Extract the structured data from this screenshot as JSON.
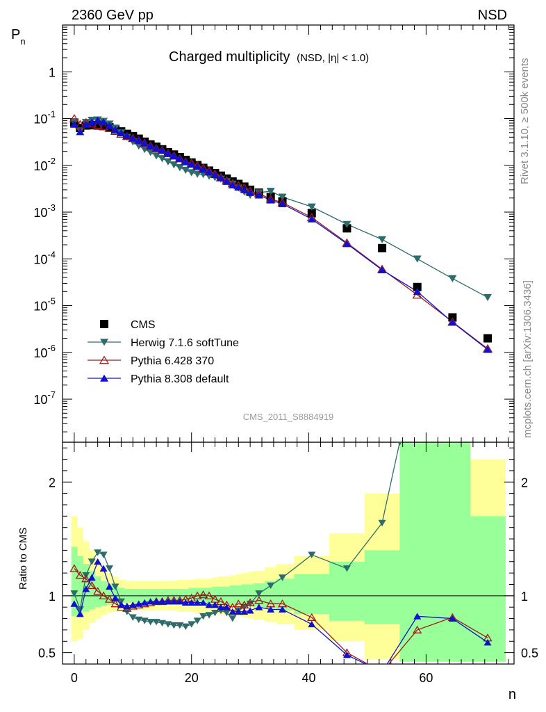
{
  "header": {
    "energy_label": "2360 GeV pp",
    "process_label": "NSD"
  },
  "side_labels": {
    "rivet": "Rivet 3.1.10, ≥ 500k events",
    "source": "mcplots.cern.ch [arXiv:1306.3436]"
  },
  "plot_id": "CMS_2011_S8884919",
  "colors": {
    "cms": "#000000",
    "herwig": "#2e6b6b",
    "pythia6": "#9b1c1c",
    "pythia8": "#1010d0",
    "band_inner": "#99ff99",
    "band_outer": "#ffff99"
  },
  "chart_data": [
    {
      "type": "scatter",
      "panel": "main",
      "title": "Charged multiplicity",
      "title_suffix": "(NSD, |η| < 1.0)",
      "ylabel": "P_n",
      "yscale": "log",
      "ylim": [
        1.2e-08,
        10
      ],
      "xlim": [
        -2,
        75
      ],
      "y_tick_labels": [
        "1",
        "10^-1",
        "10^-2",
        "10^-3",
        "10^-4",
        "10^-5",
        "10^-6",
        "10^-7"
      ],
      "legend_position": "bottom-left",
      "series": [
        {
          "name": "CMS",
          "marker": "square",
          "x": [
            0,
            1,
            2,
            3,
            4,
            5,
            6,
            7,
            8,
            9,
            10,
            11,
            12,
            13,
            14,
            15,
            16,
            17,
            18,
            19,
            20,
            21,
            22,
            23,
            24,
            25,
            26,
            27,
            28,
            29,
            30,
            31.5,
            33.5,
            35.5,
            40.5,
            46.5,
            52.5,
            58.5,
            64.5,
            70.5
          ],
          "y": [
            0.082,
            0.063,
            0.071,
            0.072,
            0.071,
            0.069,
            0.065,
            0.059,
            0.053,
            0.047,
            0.042,
            0.037,
            0.032,
            0.028,
            0.025,
            0.022,
            0.019,
            0.017,
            0.015,
            0.013,
            0.0115,
            0.0101,
            0.0088,
            0.0077,
            0.0068,
            0.006,
            0.0052,
            0.0045,
            0.004,
            0.0035,
            0.003,
            0.0026,
            0.0021,
            0.0017,
            0.00095,
            0.00045,
            0.00017,
            2.5e-05,
            5.6e-06,
            2e-06
          ]
        },
        {
          "name": "Herwig 7.1.6 softTune",
          "marker": "triangle-down",
          "x": [
            0,
            1,
            2,
            3,
            4,
            5,
            6,
            7,
            8,
            9,
            10,
            11,
            12,
            13,
            14,
            15,
            16,
            17,
            18,
            19,
            20,
            21,
            22,
            23,
            24,
            25,
            26,
            27,
            28,
            29,
            30,
            31.5,
            33.5,
            35.5,
            40.5,
            46.5,
            52.5,
            58.5,
            64.5,
            70.5
          ],
          "y": [
            0.084,
            0.055,
            0.083,
            0.093,
            0.094,
            0.088,
            0.077,
            0.063,
            0.05,
            0.04,
            0.032,
            0.026,
            0.022,
            0.019,
            0.016,
            0.014,
            0.012,
            0.0103,
            0.009,
            0.0079,
            0.007,
            0.0065,
            0.0064,
            0.0059,
            0.0055,
            0.0051,
            0.0045,
            0.004,
            0.0033,
            0.0027,
            0.0023,
            0.0026,
            0.0028,
            0.0021,
            0.0013,
            0.00055,
            0.00026,
            0.0001,
            3.8e-05,
            1.5e-05
          ]
        },
        {
          "name": "Pythia 6.428 370",
          "marker": "triangle-up-open",
          "x": [
            0,
            1,
            2,
            3,
            4,
            5,
            6,
            7,
            8,
            9,
            10,
            11,
            12,
            13,
            14,
            15,
            16,
            17,
            18,
            19,
            20,
            21,
            22,
            23,
            24,
            25,
            26,
            27,
            28,
            29,
            30,
            31.5,
            33.5,
            35.5,
            40.5,
            46.5,
            52.5,
            58.5,
            64.5,
            70.5
          ],
          "y": [
            0.1,
            0.074,
            0.082,
            0.078,
            0.073,
            0.068,
            0.062,
            0.054,
            0.047,
            0.042,
            0.038,
            0.034,
            0.03,
            0.026,
            0.023,
            0.021,
            0.018,
            0.016,
            0.014,
            0.012,
            0.0111,
            0.0099,
            0.0088,
            0.0076,
            0.0065,
            0.0055,
            0.0047,
            0.0041,
            0.0037,
            0.0033,
            0.0028,
            0.0025,
            0.0019,
            0.0016,
            0.00077,
            0.00022,
            6e-05,
            1.7e-05,
            4.5e-06,
            1.2e-06
          ]
        },
        {
          "name": "Pythia 8.308 default",
          "marker": "triangle-up",
          "x": [
            0,
            1,
            2,
            3,
            4,
            5,
            6,
            7,
            8,
            9,
            10,
            11,
            12,
            13,
            14,
            15,
            16,
            17,
            18,
            19,
            20,
            21,
            22,
            23,
            24,
            25,
            26,
            27,
            28,
            29,
            30,
            31.5,
            33.5,
            35.5,
            40.5,
            46.5,
            52.5,
            58.5,
            64.5,
            70.5
          ],
          "y": [
            0.075,
            0.052,
            0.075,
            0.083,
            0.092,
            0.084,
            0.071,
            0.058,
            0.049,
            0.043,
            0.038,
            0.034,
            0.03,
            0.026,
            0.023,
            0.021,
            0.018,
            0.016,
            0.014,
            0.012,
            0.0105,
            0.0094,
            0.0082,
            0.0072,
            0.0063,
            0.0054,
            0.0045,
            0.0038,
            0.0034,
            0.003,
            0.0026,
            0.0023,
            0.0018,
            0.0015,
            0.00071,
            0.00021,
            5.8e-05,
            2e-05,
            4.4e-06,
            1.15e-06
          ]
        }
      ]
    },
    {
      "type": "line",
      "panel": "ratio",
      "ylabel": "Ratio to CMS",
      "xlabel": "n",
      "ylim": [
        0.4,
        2.35
      ],
      "xlim": [
        -2,
        75
      ],
      "x_ticks": [
        0,
        20,
        40,
        60
      ],
      "y_ticks": [
        0.5,
        1,
        2
      ],
      "reference_line": 1,
      "bands": {
        "edges": [
          -0.5,
          0.5,
          1.5,
          2.5,
          3.5,
          4.5,
          5.5,
          6.5,
          7.5,
          8.5,
          9.5,
          10.5,
          11.5,
          12.5,
          13.5,
          14.5,
          15.5,
          16.5,
          17.5,
          18.5,
          19.5,
          20.5,
          21.5,
          22.5,
          23.5,
          24.5,
          25.5,
          26.5,
          27.5,
          28.5,
          29.5,
          30.5,
          32.5,
          34.5,
          37.5,
          43.5,
          49.5,
          55.5,
          61.5,
          67.5,
          73.5
        ],
        "inner_low": [
          0.82,
          0.84,
          0.86,
          0.88,
          0.9,
          0.91,
          0.92,
          0.93,
          0.94,
          0.94,
          0.94,
          0.94,
          0.94,
          0.94,
          0.94,
          0.94,
          0.94,
          0.94,
          0.94,
          0.94,
          0.94,
          0.94,
          0.93,
          0.93,
          0.93,
          0.93,
          0.92,
          0.92,
          0.92,
          0.91,
          0.91,
          0.9,
          0.89,
          0.87,
          0.84,
          0.78,
          0.75,
          0.42,
          0.42,
          0.42
        ],
        "inner_high": [
          1.43,
          1.35,
          1.28,
          1.22,
          1.17,
          1.13,
          1.1,
          1.08,
          1.07,
          1.06,
          1.06,
          1.06,
          1.06,
          1.06,
          1.06,
          1.06,
          1.06,
          1.06,
          1.06,
          1.06,
          1.07,
          1.07,
          1.07,
          1.07,
          1.08,
          1.08,
          1.08,
          1.09,
          1.09,
          1.1,
          1.1,
          1.11,
          1.13,
          1.15,
          1.19,
          1.3,
          1.4,
          2.35,
          2.35,
          1.7
        ],
        "outer_low": [
          0.6,
          0.62,
          0.7,
          0.76,
          0.8,
          0.83,
          0.85,
          0.86,
          0.87,
          0.87,
          0.87,
          0.87,
          0.87,
          0.87,
          0.87,
          0.87,
          0.87,
          0.87,
          0.86,
          0.86,
          0.86,
          0.85,
          0.85,
          0.85,
          0.84,
          0.84,
          0.83,
          0.83,
          0.82,
          0.81,
          0.8,
          0.79,
          0.77,
          0.75,
          0.7,
          0.6,
          0.44,
          0.42,
          0.42,
          0.42
        ],
        "outer_high": [
          1.7,
          1.6,
          1.48,
          1.4,
          1.32,
          1.25,
          1.2,
          1.17,
          1.14,
          1.13,
          1.13,
          1.13,
          1.13,
          1.13,
          1.13,
          1.13,
          1.13,
          1.13,
          1.14,
          1.14,
          1.14,
          1.15,
          1.15,
          1.15,
          1.16,
          1.17,
          1.17,
          1.18,
          1.19,
          1.2,
          1.21,
          1.22,
          1.25,
          1.28,
          1.35,
          1.55,
          1.9,
          2.35,
          2.35,
          2.2
        ]
      },
      "series": [
        {
          "name": "Herwig 7.1.6 softTune",
          "x": [
            0,
            1,
            2,
            3,
            4,
            5,
            6,
            7,
            8,
            9,
            10,
            11,
            12,
            13,
            14,
            15,
            16,
            17,
            18,
            19,
            20,
            21,
            22,
            23,
            24,
            25,
            26,
            27,
            28,
            29,
            30,
            31.5,
            33.5,
            35.5,
            40.5,
            46.5,
            52.5,
            55.5
          ],
          "y": [
            1.02,
            0.88,
            1.18,
            1.3,
            1.38,
            1.36,
            1.24,
            1.08,
            0.95,
            0.86,
            0.81,
            0.79,
            0.78,
            0.77,
            0.77,
            0.76,
            0.75,
            0.74,
            0.74,
            0.73,
            0.75,
            0.78,
            0.82,
            0.83,
            0.85,
            0.87,
            0.85,
            0.8,
            0.87,
            0.9,
            0.93,
            1.02,
            1.09,
            1.16,
            1.36,
            1.24,
            1.64,
            2.35
          ]
        },
        {
          "name": "Pythia 6.428 370",
          "x": [
            0,
            1,
            2,
            3,
            4,
            5,
            6,
            7,
            8,
            9,
            10,
            11,
            12,
            13,
            14,
            15,
            16,
            17,
            18,
            19,
            20,
            21,
            22,
            23,
            24,
            25,
            26,
            27,
            28,
            29,
            30,
            31.5,
            33.5,
            35.5,
            40.5,
            46.5,
            52.5,
            58.5,
            64.5,
            70.5
          ],
          "y": [
            1.24,
            1.18,
            1.15,
            1.09,
            1.04,
            1.0,
            0.97,
            0.93,
            0.9,
            0.89,
            0.91,
            0.92,
            0.93,
            0.94,
            0.95,
            0.95,
            0.96,
            0.96,
            0.96,
            0.97,
            0.98,
            1.0,
            1.01,
            1.0,
            0.97,
            0.95,
            0.92,
            0.9,
            0.93,
            0.92,
            0.94,
            0.96,
            0.93,
            0.93,
            0.81,
            0.5,
            0.33,
            0.7,
            0.81,
            0.63
          ]
        },
        {
          "name": "Pythia 8.308 default",
          "x": [
            0,
            1,
            2,
            3,
            4,
            5,
            6,
            7,
            8,
            9,
            10,
            11,
            12,
            13,
            14,
            15,
            16,
            17,
            18,
            19,
            20,
            21,
            22,
            23,
            24,
            25,
            26,
            27,
            28,
            29,
            30,
            31.5,
            33.5,
            35.5,
            40.5,
            46.5,
            52.5,
            58.5,
            64.5,
            70.5
          ],
          "y": [
            0.93,
            0.84,
            1.06,
            1.16,
            1.3,
            1.24,
            1.08,
            0.98,
            0.92,
            0.91,
            0.92,
            0.93,
            0.94,
            0.95,
            0.95,
            0.95,
            0.95,
            0.95,
            0.95,
            0.94,
            0.94,
            0.94,
            0.94,
            0.92,
            0.92,
            0.9,
            0.9,
            0.86,
            0.86,
            0.86,
            0.87,
            0.9,
            0.88,
            0.88,
            0.75,
            0.48,
            0.33,
            0.82,
            0.8,
            0.59
          ]
        }
      ]
    }
  ]
}
